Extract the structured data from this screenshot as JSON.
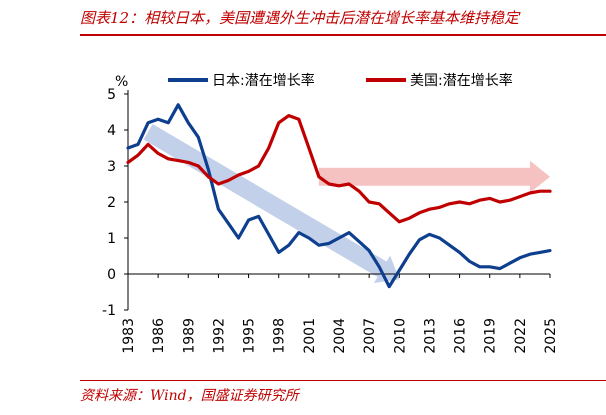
{
  "caption": "图表12：相较日本，美国遭遇外生冲击后潜在增长率基本维持稳定",
  "source": "资料来源：Wind，国盛证券研究所",
  "chart_data": {
    "type": "line",
    "title": "",
    "xlabel": "",
    "ylabel": "",
    "y_unit": "%",
    "xlim": [
      1983,
      2025
    ],
    "ylim": [
      -1,
      5
    ],
    "yticks": [
      -1,
      0,
      1,
      2,
      3,
      4,
      5
    ],
    "xticks": [
      "1983",
      "1986",
      "1989",
      "1992",
      "1995",
      "1998",
      "2001",
      "2004",
      "2007",
      "2010",
      "2013",
      "2016",
      "2019",
      "2022",
      "2025"
    ],
    "legend_position": "top",
    "series": [
      {
        "name": "日本:潜在增长率",
        "color": "#0e3f8f",
        "x": [
          1983,
          1984,
          1985,
          1986,
          1987,
          1988,
          1989,
          1990,
          1991,
          1992,
          1993,
          1994,
          1995,
          1996,
          1997,
          1998,
          1999,
          2000,
          2001,
          2002,
          2003,
          2004,
          2005,
          2006,
          2007,
          2008,
          2009,
          2010,
          2011,
          2012,
          2013,
          2014,
          2015,
          2016,
          2017,
          2018,
          2019,
          2020,
          2021,
          2022,
          2023,
          2024,
          2025
        ],
        "values": [
          3.5,
          3.6,
          4.2,
          4.3,
          4.2,
          4.7,
          4.2,
          3.8,
          2.9,
          1.8,
          1.4,
          1.0,
          1.5,
          1.6,
          1.1,
          0.6,
          0.8,
          1.15,
          1.0,
          0.8,
          0.85,
          1.0,
          1.15,
          0.9,
          0.65,
          0.2,
          -0.35,
          0.1,
          0.55,
          0.95,
          1.1,
          1.0,
          0.8,
          0.6,
          0.35,
          0.2,
          0.2,
          0.15,
          0.3,
          0.45,
          0.55,
          0.6,
          0.65
        ]
      },
      {
        "name": "美国:潜在增长率",
        "color": "#c00000",
        "x": [
          1983,
          1984,
          1985,
          1986,
          1987,
          1988,
          1989,
          1990,
          1991,
          1992,
          1993,
          1994,
          1995,
          1996,
          1997,
          1998,
          1999,
          2000,
          2001,
          2002,
          2003,
          2004,
          2005,
          2006,
          2007,
          2008,
          2009,
          2010,
          2011,
          2012,
          2013,
          2014,
          2015,
          2016,
          2017,
          2018,
          2019,
          2020,
          2021,
          2022,
          2023,
          2024,
          2025
        ],
        "values": [
          3.1,
          3.3,
          3.6,
          3.35,
          3.2,
          3.15,
          3.1,
          3.0,
          2.7,
          2.5,
          2.6,
          2.75,
          2.85,
          3.0,
          3.5,
          4.2,
          4.4,
          4.3,
          3.5,
          2.7,
          2.5,
          2.45,
          2.5,
          2.3,
          2.0,
          1.95,
          1.7,
          1.45,
          1.55,
          1.7,
          1.8,
          1.85,
          1.95,
          2.0,
          1.95,
          2.05,
          2.1,
          2.0,
          2.05,
          2.15,
          2.25,
          2.3,
          2.3
        ]
      }
    ],
    "annotations": [
      {
        "kind": "arrow",
        "color": "#b8c8e6",
        "from": [
          1985,
          3.95
        ],
        "to": [
          2010,
          -0.15
        ]
      },
      {
        "kind": "arrow",
        "color": "#f4b6b6",
        "from": [
          2002,
          2.7
        ],
        "to": [
          2025,
          2.7
        ]
      }
    ]
  }
}
